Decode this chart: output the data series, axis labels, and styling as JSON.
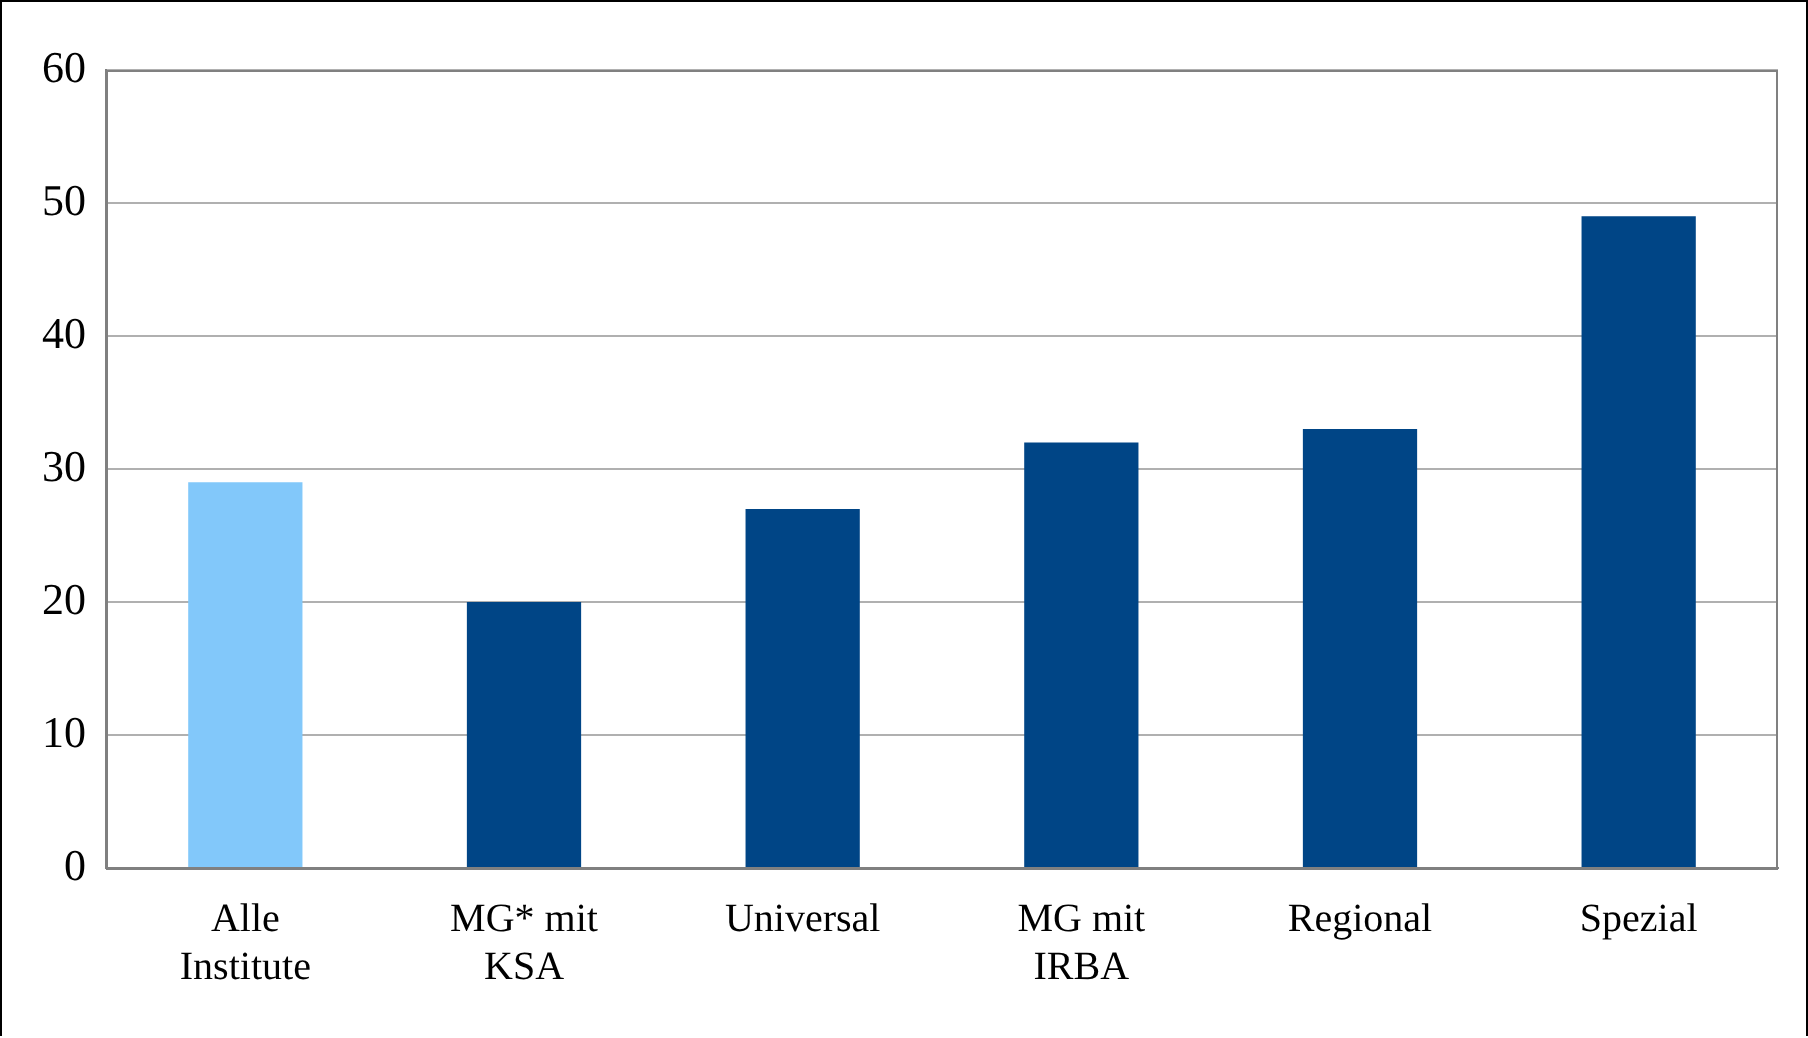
{
  "chart_data": {
    "type": "bar",
    "categories": [
      "Alle Institute",
      "MG* mit KSA",
      "Universal",
      "MG mit IRBA",
      "Regional",
      "Spezial"
    ],
    "values": [
      29,
      20,
      27,
      32,
      33,
      49
    ],
    "colors": [
      "#82c8fa",
      "#004586",
      "#004586",
      "#004586",
      "#004586",
      "#004586"
    ],
    "ylim": [
      0,
      60
    ],
    "yticks": [
      0,
      10,
      20,
      30,
      40,
      50,
      60
    ],
    "grid": "y",
    "legend": false
  }
}
